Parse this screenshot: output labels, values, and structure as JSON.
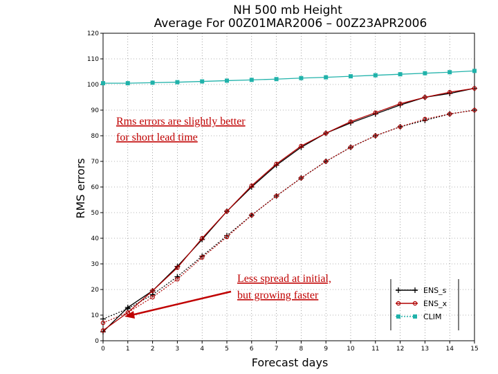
{
  "chart_data": {
    "type": "line",
    "title": "NH 500 mb Height",
    "subtitle": "Average For 00Z01MAR2006 – 00Z23APR2006",
    "xlabel": "Forecast days",
    "ylabel": "RMS errors",
    "xlim": [
      0,
      15
    ],
    "ylim": [
      0,
      120
    ],
    "x": [
      0,
      1,
      2,
      3,
      4,
      5,
      6,
      7,
      8,
      9,
      10,
      11,
      12,
      13,
      14,
      15
    ],
    "x_ticks": [
      "0",
      "1",
      "2",
      "3",
      "4",
      "5",
      "6",
      "7",
      "8",
      "9",
      "10",
      "11",
      "12",
      "13",
      "14",
      "15"
    ],
    "y_ticks": [
      "0",
      "10",
      "20",
      "30",
      "40",
      "50",
      "60",
      "70",
      "80",
      "90",
      "100",
      "110",
      "120"
    ],
    "grid": "dotted",
    "legend_position": "bottom-right",
    "series": [
      {
        "name": "ENS_s",
        "color": "#000000",
        "marker": "plus",
        "style": "solid",
        "values": [
          3.5,
          13,
          19.5,
          29,
          39.5,
          50.5,
          60,
          68.5,
          75.5,
          81,
          85,
          88.5,
          92,
          95,
          96.5,
          98.5
        ]
      },
      {
        "name": "ENS_s",
        "color": "#000000",
        "marker": "plus",
        "style": "dotted",
        "values": [
          8.5,
          12.5,
          18,
          25,
          33,
          41,
          49,
          56.5,
          63.5,
          70,
          75.5,
          80,
          83.5,
          86,
          88.5,
          90
        ]
      },
      {
        "name": "ENS_x",
        "color": "#b00000",
        "marker": "circle",
        "style": "solid",
        "values": [
          4,
          11,
          19.5,
          28.5,
          40,
          50.5,
          60.5,
          69,
          76,
          81,
          85.5,
          89,
          92.5,
          95,
          97,
          98.5
        ]
      },
      {
        "name": "ENS_x",
        "color": "#b00000",
        "marker": "circle",
        "style": "dotted",
        "values": [
          7,
          11,
          17,
          24,
          32.5,
          40.5,
          49,
          56.5,
          63.5,
          70,
          75.5,
          80,
          83.5,
          86.5,
          88.5,
          90
        ]
      },
      {
        "name": "CLIM",
        "color": "#20b2aa",
        "marker": "square",
        "style": "solid",
        "values": [
          100.5,
          100.5,
          100.7,
          100.9,
          101.2,
          101.5,
          101.8,
          102.1,
          102.5,
          102.8,
          103.2,
          103.6,
          104,
          104.4,
          104.8,
          105.3
        ]
      }
    ],
    "legend": [
      {
        "label": "ENS_s",
        "color": "#000000",
        "marker": "plus",
        "style": "solid"
      },
      {
        "label": "ENS_x",
        "color": "#b00000",
        "marker": "circle",
        "style": "solid"
      },
      {
        "label": "CLIM",
        "color": "#20b2aa",
        "marker": "square",
        "style": "dotted"
      }
    ],
    "annotations": [
      {
        "lines": [
          "Rms errors are slightly better",
          "for short lead time"
        ],
        "color": "#c00000"
      },
      {
        "lines": [
          "Less spread at initial,",
          "but growing faster"
        ],
        "color": "#c00000",
        "arrow_to": [
          1,
          10.5
        ]
      }
    ]
  }
}
